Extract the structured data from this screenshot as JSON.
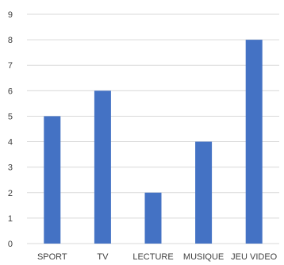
{
  "chart_data": {
    "type": "bar",
    "categories": [
      "SPORT",
      "TV",
      "LECTURE",
      "MUSIQUE",
      "JEU VIDEO"
    ],
    "values": [
      5,
      6,
      2,
      4,
      8
    ],
    "ylim": [
      0,
      9
    ],
    "yticks": [
      0,
      1,
      2,
      3,
      4,
      5,
      6,
      7,
      8,
      9
    ],
    "grid": true,
    "legend": "none",
    "bar_color": "#4472C4",
    "gridline_color": "#d9d9d9"
  }
}
